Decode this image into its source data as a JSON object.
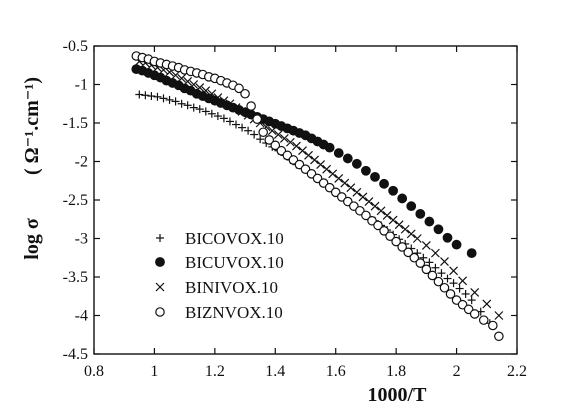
{
  "chart_data": {
    "type": "scatter",
    "title": "",
    "xlabel": "1000/T",
    "ylabel": "log σ",
    "ylabel_unit": "( Ω⁻¹.cm⁻¹)",
    "xlim": [
      0.8,
      2.2
    ],
    "ylim": [
      -4.5,
      -0.5
    ],
    "x_ticks": [
      0.8,
      1,
      1.2,
      1.4,
      1.6,
      1.8,
      2,
      2.2
    ],
    "y_ticks": [
      -0.5,
      -1,
      -1.5,
      -2,
      -2.5,
      -3,
      -3.5,
      -4,
      -4.5
    ],
    "x_tick_labels": [
      "0.8",
      "1",
      "1.2",
      "1.4",
      "1.6",
      "1.8",
      "2",
      "2.2"
    ],
    "y_tick_labels": [
      "-0.5",
      "-1",
      "-1.5",
      "-2",
      "-2.5",
      "-3",
      "-3.5",
      "-4",
      "-4.5"
    ],
    "grid": false,
    "legend_position": "bottom-left",
    "series": [
      {
        "name": "BICOVOX.10",
        "marker": "plus",
        "x": [
          0.95,
          0.97,
          0.99,
          1.01,
          1.03,
          1.05,
          1.07,
          1.09,
          1.11,
          1.13,
          1.15,
          1.17,
          1.19,
          1.21,
          1.23,
          1.25,
          1.27,
          1.29,
          1.31,
          1.33,
          1.35,
          1.37,
          1.39,
          1.41,
          1.43,
          1.45,
          1.47,
          1.49,
          1.51,
          1.53,
          1.55,
          1.57,
          1.59,
          1.61,
          1.63,
          1.65,
          1.67,
          1.69,
          1.71,
          1.73,
          1.75,
          1.77,
          1.79,
          1.81,
          1.83,
          1.85,
          1.87,
          1.89,
          1.91,
          1.93,
          1.95,
          1.97,
          1.99,
          2.01,
          2.03,
          2.05,
          2.08,
          2.11
        ],
        "y": [
          -1.13,
          -1.14,
          -1.15,
          -1.16,
          -1.18,
          -1.2,
          -1.22,
          -1.25,
          -1.27,
          -1.3,
          -1.32,
          -1.35,
          -1.38,
          -1.41,
          -1.44,
          -1.48,
          -1.52,
          -1.56,
          -1.6,
          -1.65,
          -1.71,
          -1.76,
          -1.81,
          -1.86,
          -1.92,
          -1.98,
          -2.04,
          -2.09,
          -2.15,
          -2.21,
          -2.26,
          -2.32,
          -2.38,
          -2.43,
          -2.49,
          -2.55,
          -2.6,
          -2.66,
          -2.72,
          -2.77,
          -2.83,
          -2.89,
          -2.95,
          -3.01,
          -3.07,
          -3.13,
          -3.19,
          -3.25,
          -3.31,
          -3.38,
          -3.45,
          -3.52,
          -3.58,
          -3.65,
          -3.72,
          -3.8,
          -3.95,
          -4.1
        ]
      },
      {
        "name": "BICUVOX.10",
        "marker": "filled-circle",
        "x": [
          0.94,
          0.96,
          0.98,
          1.0,
          1.02,
          1.04,
          1.06,
          1.08,
          1.1,
          1.12,
          1.14,
          1.16,
          1.18,
          1.2,
          1.22,
          1.24,
          1.26,
          1.28,
          1.3,
          1.32,
          1.34,
          1.36,
          1.38,
          1.4,
          1.42,
          1.44,
          1.46,
          1.48,
          1.5,
          1.52,
          1.54,
          1.56,
          1.58,
          1.61,
          1.64,
          1.67,
          1.7,
          1.73,
          1.76,
          1.79,
          1.82,
          1.85,
          1.88,
          1.91,
          1.94,
          1.97,
          2.0,
          2.05
        ],
        "y": [
          -0.8,
          -0.82,
          -0.85,
          -0.88,
          -0.91,
          -0.95,
          -0.98,
          -1.01,
          -1.05,
          -1.08,
          -1.12,
          -1.15,
          -1.18,
          -1.21,
          -1.24,
          -1.27,
          -1.3,
          -1.33,
          -1.36,
          -1.39,
          -1.42,
          -1.45,
          -1.48,
          -1.51,
          -1.54,
          -1.57,
          -1.6,
          -1.63,
          -1.66,
          -1.7,
          -1.74,
          -1.78,
          -1.82,
          -1.89,
          -1.96,
          -2.03,
          -2.12,
          -2.2,
          -2.29,
          -2.38,
          -2.48,
          -2.58,
          -2.68,
          -2.78,
          -2.88,
          -2.99,
          -3.08,
          -3.19
        ]
      },
      {
        "name": "BINIVOX.10",
        "marker": "cross",
        "x": [
          0.95,
          0.97,
          0.99,
          1.01,
          1.03,
          1.05,
          1.07,
          1.09,
          1.11,
          1.13,
          1.15,
          1.17,
          1.19,
          1.21,
          1.23,
          1.25,
          1.27,
          1.29,
          1.31,
          1.33,
          1.35,
          1.37,
          1.39,
          1.41,
          1.43,
          1.45,
          1.47,
          1.49,
          1.51,
          1.53,
          1.55,
          1.57,
          1.59,
          1.61,
          1.63,
          1.65,
          1.67,
          1.69,
          1.71,
          1.73,
          1.75,
          1.77,
          1.79,
          1.81,
          1.83,
          1.85,
          1.87,
          1.9,
          1.93,
          1.96,
          1.99,
          2.02,
          2.06,
          2.1,
          2.14
        ],
        "y": [
          -0.7,
          -0.72,
          -0.75,
          -0.78,
          -0.81,
          -0.84,
          -0.88,
          -0.92,
          -0.96,
          -1.0,
          -1.04,
          -1.08,
          -1.12,
          -1.17,
          -1.21,
          -1.25,
          -1.3,
          -1.35,
          -1.4,
          -1.45,
          -1.5,
          -1.55,
          -1.6,
          -1.65,
          -1.7,
          -1.75,
          -1.8,
          -1.86,
          -1.92,
          -1.98,
          -2.04,
          -2.1,
          -2.16,
          -2.22,
          -2.28,
          -2.34,
          -2.4,
          -2.46,
          -2.52,
          -2.58,
          -2.64,
          -2.7,
          -2.76,
          -2.82,
          -2.88,
          -2.94,
          -3.0,
          -3.09,
          -3.19,
          -3.3,
          -3.42,
          -3.55,
          -3.7,
          -3.85,
          -4.0
        ]
      },
      {
        "name": "BIZNVOX.10",
        "marker": "open-circle",
        "x": [
          0.94,
          0.96,
          0.98,
          1.0,
          1.02,
          1.04,
          1.06,
          1.08,
          1.1,
          1.12,
          1.14,
          1.16,
          1.18,
          1.2,
          1.22,
          1.24,
          1.26,
          1.28,
          1.3,
          1.32,
          1.34,
          1.36,
          1.38,
          1.4,
          1.42,
          1.44,
          1.46,
          1.48,
          1.5,
          1.52,
          1.54,
          1.56,
          1.58,
          1.6,
          1.62,
          1.64,
          1.66,
          1.68,
          1.7,
          1.72,
          1.74,
          1.76,
          1.78,
          1.8,
          1.82,
          1.84,
          1.86,
          1.88,
          1.9,
          1.92,
          1.94,
          1.96,
          1.98,
          2.0,
          2.02,
          2.04,
          2.06,
          2.09,
          2.12,
          2.14
        ],
        "y": [
          -0.63,
          -0.65,
          -0.67,
          -0.7,
          -0.72,
          -0.74,
          -0.76,
          -0.78,
          -0.81,
          -0.83,
          -0.85,
          -0.87,
          -0.9,
          -0.92,
          -0.95,
          -0.98,
          -1.01,
          -1.05,
          -1.12,
          -1.28,
          -1.45,
          -1.62,
          -1.72,
          -1.79,
          -1.86,
          -1.92,
          -1.98,
          -2.04,
          -2.1,
          -2.16,
          -2.22,
          -2.28,
          -2.34,
          -2.4,
          -2.46,
          -2.52,
          -2.58,
          -2.64,
          -2.7,
          -2.77,
          -2.83,
          -2.9,
          -2.97,
          -3.04,
          -3.11,
          -3.18,
          -3.25,
          -3.32,
          -3.4,
          -3.48,
          -3.56,
          -3.64,
          -3.72,
          -3.8,
          -3.86,
          -3.92,
          -3.98,
          -4.06,
          -4.13,
          -4.27
        ]
      }
    ]
  }
}
